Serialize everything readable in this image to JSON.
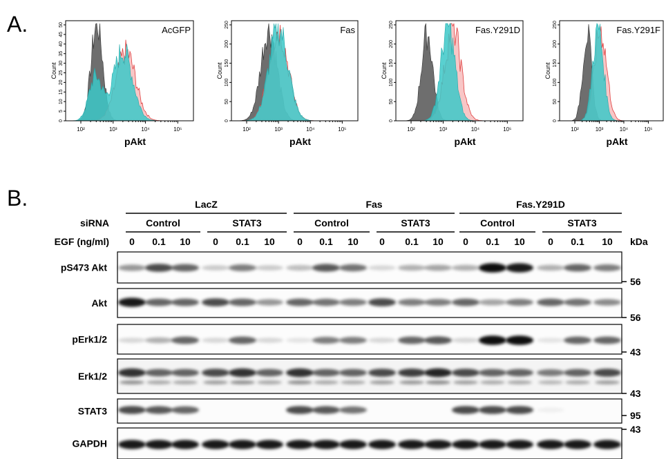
{
  "panel_a": {
    "label": "A.",
    "histograms": [
      {
        "legend": "AcGFP",
        "y_axis_label": "Count",
        "yticks": [
          "0",
          "5",
          "10",
          "15",
          "20",
          "25",
          "30",
          "35",
          "40",
          "45",
          "50"
        ],
        "xticks": [
          "10²",
          "10³",
          "10⁴",
          "10⁵"
        ],
        "x_axis_label": "pAkt"
      },
      {
        "legend": "Fas",
        "y_axis_label": "Count",
        "yticks": [
          "0",
          "50",
          "100",
          "150",
          "200",
          "250"
        ],
        "xticks": [
          "10²",
          "10³",
          "10⁴",
          "10⁵"
        ],
        "x_axis_label": "pAkt"
      },
      {
        "legend": "Fas.Y291D",
        "y_axis_label": "Count",
        "yticks": [
          "0",
          "50",
          "100",
          "150",
          "200",
          "250"
        ],
        "xticks": [
          "10²",
          "10³",
          "10⁴",
          "10⁵"
        ],
        "x_axis_label": "pAkt"
      },
      {
        "legend": "Fas.Y291F",
        "y_axis_label": "Count",
        "yticks": [
          "0",
          "50",
          "100",
          "150",
          "200",
          "250"
        ],
        "xticks": [
          "10²",
          "10³",
          "10⁴",
          "10⁵"
        ],
        "x_axis_label": "pAkt"
      }
    ]
  },
  "panel_b": {
    "label": "B.",
    "groups": [
      {
        "name": "LacZ",
        "sirna": [
          "Control",
          "STAT3"
        ]
      },
      {
        "name": "Fas",
        "sirna": [
          "Control",
          "STAT3"
        ]
      },
      {
        "name": "Fas.Y291D",
        "sirna": [
          "Control",
          "STAT3"
        ]
      }
    ],
    "sirna_label": "siRNA",
    "egf_label": "EGF (ng/ml)",
    "kda_label": "kDa",
    "egf_doses": [
      "0",
      "0.1",
      "10",
      "0",
      "0.1",
      "10",
      "0",
      "0.1",
      "10",
      "0",
      "0.1",
      "10",
      "0",
      "0.1",
      "10",
      "0",
      "0.1",
      "10"
    ],
    "rows": [
      {
        "name": "pS473 Akt",
        "marker": "56"
      },
      {
        "name": "Akt",
        "marker": "56"
      },
      {
        "name": "pErk1/2",
        "marker": "43"
      },
      {
        "name": "Erk1/2",
        "marker": "43"
      },
      {
        "name": "STAT3",
        "marker": "95"
      },
      {
        "name": "GAPDH",
        "marker": "43"
      }
    ]
  }
}
